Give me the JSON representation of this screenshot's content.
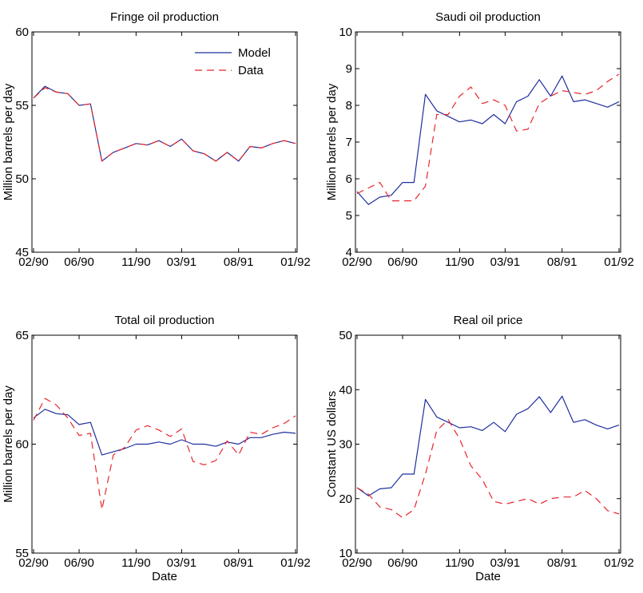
{
  "chart_data": [
    {
      "type": "line",
      "title": "Fringe oil production",
      "xlabel": "",
      "ylabel": "Million barrels per day",
      "ylim": [
        45,
        60
      ],
      "yticks": [
        45,
        50,
        55,
        60
      ],
      "xtick_labels": [
        "02/90",
        "06/90",
        "11/90",
        "03/91",
        "08/91",
        "01/92"
      ],
      "xtick_indices": [
        0,
        4,
        9,
        13,
        18,
        23
      ],
      "legend": {
        "position": "top-right",
        "entries": [
          "Model",
          "Data"
        ]
      },
      "series": [
        {
          "name": "Model",
          "color": "#1f2f9e",
          "dash": "solid",
          "values": [
            55.5,
            56.3,
            55.9,
            55.8,
            55.0,
            55.1,
            51.2,
            51.8,
            52.1,
            52.4,
            52.3,
            52.6,
            52.2,
            52.7,
            51.9,
            51.7,
            51.2,
            51.8,
            51.2,
            52.2,
            52.1,
            52.4,
            52.6,
            52.4
          ]
        },
        {
          "name": "Data",
          "color": "#e8262d",
          "dash": "dashed",
          "values": [
            55.5,
            56.2,
            55.9,
            55.8,
            55.0,
            55.1,
            51.2,
            51.8,
            52.1,
            52.4,
            52.3,
            52.6,
            52.2,
            52.7,
            51.9,
            51.7,
            51.2,
            51.8,
            51.2,
            52.2,
            52.1,
            52.4,
            52.6,
            52.4
          ]
        }
      ]
    },
    {
      "type": "line",
      "title": "Saudi oil production",
      "xlabel": "",
      "ylabel": "Million barrels per day",
      "ylim": [
        4,
        10
      ],
      "yticks": [
        4,
        5,
        6,
        7,
        8,
        9,
        10
      ],
      "xtick_labels": [
        "02/90",
        "06/90",
        "11/90",
        "03/91",
        "08/91",
        "01/92"
      ],
      "xtick_indices": [
        0,
        4,
        9,
        13,
        18,
        23
      ],
      "series": [
        {
          "name": "Model",
          "color": "#1f2f9e",
          "dash": "solid",
          "values": [
            5.65,
            5.3,
            5.5,
            5.55,
            5.9,
            5.9,
            8.3,
            7.85,
            7.7,
            7.55,
            7.6,
            7.5,
            7.75,
            7.5,
            8.1,
            8.25,
            8.7,
            8.25,
            8.8,
            8.1,
            8.15,
            8.05,
            7.95,
            8.1
          ]
        },
        {
          "name": "Data",
          "color": "#e8262d",
          "dash": "dashed",
          "values": [
            5.6,
            5.75,
            5.9,
            5.4,
            5.4,
            5.4,
            5.8,
            7.75,
            7.75,
            8.25,
            8.5,
            8.05,
            8.15,
            8.0,
            7.3,
            7.35,
            8.05,
            8.25,
            8.4,
            8.35,
            8.3,
            8.4,
            8.65,
            8.85
          ]
        }
      ]
    },
    {
      "type": "line",
      "title": "Total oil production",
      "xlabel": "Date",
      "ylabel": "Million barrels per day",
      "ylim": [
        55,
        65
      ],
      "yticks": [
        55,
        60,
        65
      ],
      "xtick_labels": [
        "02/90",
        "06/90",
        "11/90",
        "03/91",
        "08/91",
        "01/92"
      ],
      "xtick_indices": [
        0,
        4,
        9,
        13,
        18,
        23
      ],
      "series": [
        {
          "name": "Model",
          "color": "#1f2f9e",
          "dash": "solid",
          "values": [
            61.2,
            61.6,
            61.4,
            61.35,
            60.9,
            61.0,
            59.5,
            59.65,
            59.8,
            60.0,
            60.0,
            60.1,
            60.0,
            60.2,
            60.0,
            60.0,
            59.9,
            60.1,
            60.0,
            60.3,
            60.3,
            60.45,
            60.55,
            60.5
          ]
        },
        {
          "name": "Data",
          "color": "#e8262d",
          "dash": "dashed",
          "values": [
            61.1,
            62.1,
            61.8,
            61.2,
            60.4,
            60.5,
            57.0,
            59.5,
            59.85,
            60.65,
            60.85,
            60.65,
            60.35,
            60.7,
            59.2,
            59.05,
            59.25,
            60.15,
            59.5,
            60.55,
            60.45,
            60.75,
            60.95,
            61.3
          ]
        }
      ]
    },
    {
      "type": "line",
      "title": "Real oil price",
      "xlabel": "Date",
      "ylabel": "Constant US dollars",
      "ylim": [
        10,
        50
      ],
      "yticks": [
        10,
        20,
        30,
        40,
        50
      ],
      "xtick_labels": [
        "02/90",
        "06/90",
        "11/90",
        "03/91",
        "08/91",
        "01/92"
      ],
      "xtick_indices": [
        0,
        4,
        9,
        13,
        18,
        23
      ],
      "series": [
        {
          "name": "Model",
          "color": "#1f2f9e",
          "dash": "solid",
          "values": [
            22.0,
            20.5,
            21.8,
            22.0,
            24.5,
            24.5,
            38.2,
            35.0,
            34.0,
            33.0,
            33.2,
            32.5,
            34.0,
            32.3,
            35.5,
            36.5,
            38.7,
            35.8,
            38.8,
            34.0,
            34.5,
            33.5,
            32.8,
            33.5
          ]
        },
        {
          "name": "Data",
          "color": "#e8262d",
          "dash": "dashed",
          "values": [
            22.0,
            20.8,
            18.5,
            18.0,
            16.5,
            18.0,
            24.5,
            32.5,
            34.5,
            31.0,
            26.0,
            23.5,
            19.5,
            19.0,
            19.5,
            20.0,
            19.0,
            20.0,
            20.3,
            20.3,
            21.5,
            20.0,
            17.8,
            17.2
          ]
        }
      ]
    }
  ]
}
